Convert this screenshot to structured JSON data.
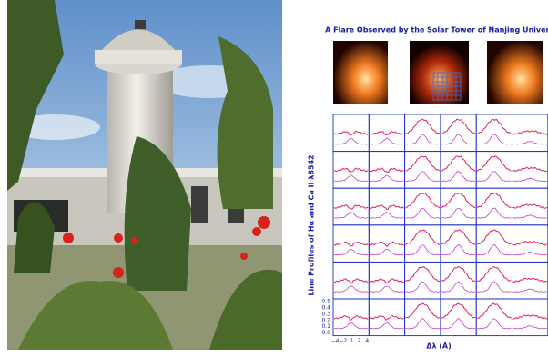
{
  "title": "A Flare Observed by the Solar Tower of Nanjing Universit",
  "y_axis_label": "Line Profiles of Hα and Ca II λ8542",
  "x_axis_label": "Δλ (Å)",
  "x_tick_labels": [
    "−4",
    "−2",
    "0",
    "2",
    "4"
  ],
  "y_tick_labels": [
    "0.5",
    "0.4",
    "0.3",
    "0.2",
    "0.1",
    "0.0"
  ]
}
